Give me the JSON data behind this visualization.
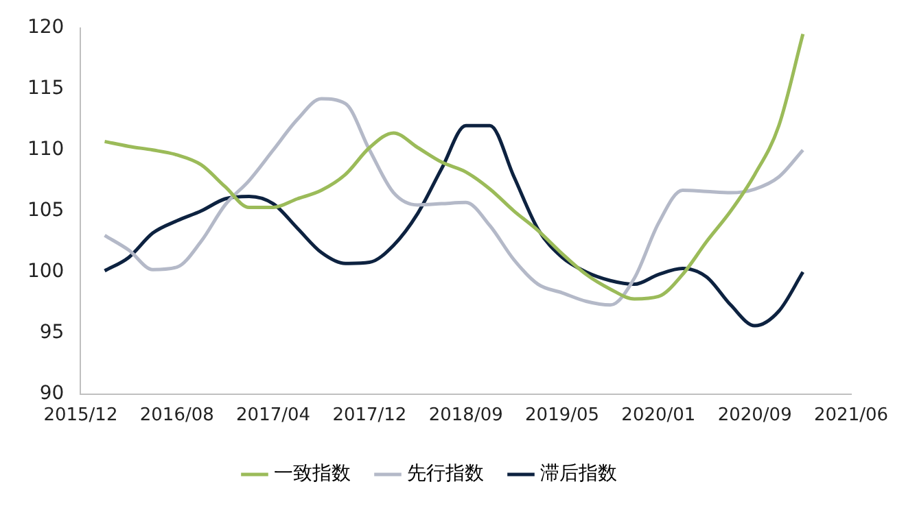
{
  "chart_data": {
    "type": "line",
    "categories": [
      "2015/12",
      null,
      null,
      null,
      "2016/08",
      null,
      null,
      null,
      "2017/04",
      null,
      null,
      null,
      "2017/12",
      null,
      null,
      null,
      "2018/09",
      null,
      null,
      null,
      "2019/05",
      null,
      null,
      null,
      "2020/01",
      null,
      null,
      null,
      "2020/09",
      null,
      null,
      null,
      "2021/06"
    ],
    "series": [
      {
        "name": "一致指数",
        "color": "#9bbb59",
        "values": [
          null,
          110.7,
          110.3,
          110,
          109.6,
          108.8,
          107,
          105.3,
          105.3,
          106,
          106.7,
          108,
          110.2,
          111.4,
          110.2,
          109,
          108.2,
          106.8,
          105,
          103.4,
          101.5,
          99.8,
          98.6,
          97.8,
          98,
          99.8,
          102.5,
          105,
          108,
          112,
          119.5,
          null,
          null
        ]
      },
      {
        "name": "先行指数",
        "color": "#b4b9c8",
        "values": [
          null,
          103,
          101.8,
          100.2,
          100.4,
          102.5,
          105.5,
          107.5,
          110,
          112.5,
          114.2,
          113.8,
          110,
          106.5,
          105.5,
          105.6,
          105.7,
          103.8,
          101,
          99,
          98.3,
          97.6,
          97.3,
          99.5,
          104,
          106.7,
          106.6,
          106.5,
          106.8,
          107.8,
          110,
          null,
          null
        ]
      },
      {
        "name": "滞后指数",
        "color": "#0d2240",
        "values": [
          null,
          100.1,
          101.2,
          103.2,
          104.2,
          105,
          106,
          106.2,
          105.6,
          103.6,
          101.6,
          100.7,
          100.8,
          102.2,
          104.8,
          108.5,
          112,
          112,
          107.8,
          103.5,
          101.2,
          100,
          99.3,
          99,
          99.8,
          100.3,
          99.6,
          97.3,
          95.6,
          96.8,
          100,
          null,
          null
        ]
      }
    ],
    "ylim": [
      90,
      120
    ],
    "yticks": [
      90,
      95,
      100,
      105,
      110,
      115,
      120
    ],
    "grid": false,
    "legend": "bottom",
    "marker": "none",
    "line_style": "solid"
  }
}
